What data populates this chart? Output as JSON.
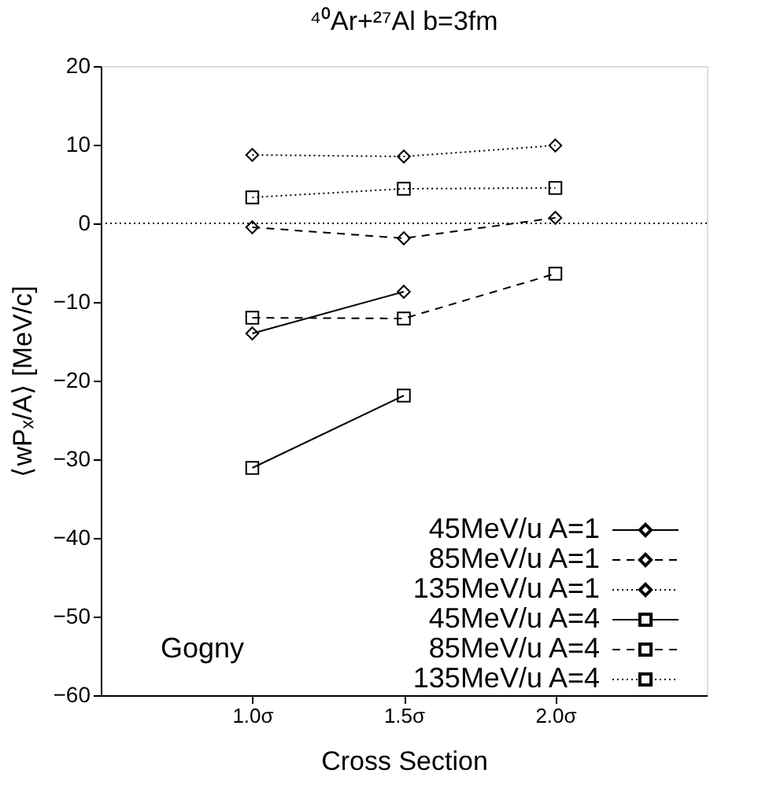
{
  "chart_data": {
    "type": "line",
    "title": "⁴⁰Ar+²⁷Al  b=3fm",
    "xlabel": "Cross Section",
    "ylabel": "⟨wPₓ/A⟩ [MeV/c]",
    "x": [
      1.0,
      1.5,
      2.0
    ],
    "xlim": [
      0.5,
      2.5
    ],
    "xticks": [
      {
        "value": 1.0,
        "label": "1.0σ"
      },
      {
        "value": 1.5,
        "label": "1.5σ"
      },
      {
        "value": 2.0,
        "label": "2.0σ"
      }
    ],
    "ylim": [
      -60,
      20
    ],
    "yticks": [
      -60,
      -50,
      -40,
      -30,
      -20,
      -10,
      0,
      10,
      20
    ],
    "grid": false,
    "legend": "bottom right",
    "ref_lines": [
      {
        "axis": "y",
        "value": 0,
        "line_style": "dotted",
        "color": "#000000"
      }
    ],
    "annotations": [
      "Gogny"
    ],
    "series": [
      {
        "name": "45MeV/u A=1",
        "color": "#000000",
        "marker": "diamond",
        "line_style": "solid",
        "values": [
          -14,
          -8.7,
          null
        ]
      },
      {
        "name": "85MeV/u A=1",
        "color": "#000000",
        "marker": "diamond",
        "line_style": "dashed",
        "values": [
          -0.5,
          -1.9,
          0.7
        ]
      },
      {
        "name": "135MeV/u A=1",
        "color": "#000000",
        "marker": "diamond",
        "line_style": "dotted",
        "values": [
          8.7,
          8.5,
          9.9
        ]
      },
      {
        "name": "45MeV/u A=4",
        "color": "#000000",
        "marker": "square",
        "line_style": "solid",
        "values": [
          -31.1,
          -21.9,
          null
        ]
      },
      {
        "name": "85MeV/u A=4",
        "color": "#000000",
        "marker": "square",
        "line_style": "dashed",
        "values": [
          -12,
          -12.1,
          -6.4
        ]
      },
      {
        "name": "135MeV/u A=4",
        "color": "#000000",
        "marker": "square",
        "line_style": "dotted",
        "values": [
          3.3,
          4.4,
          4.5
        ]
      }
    ]
  }
}
